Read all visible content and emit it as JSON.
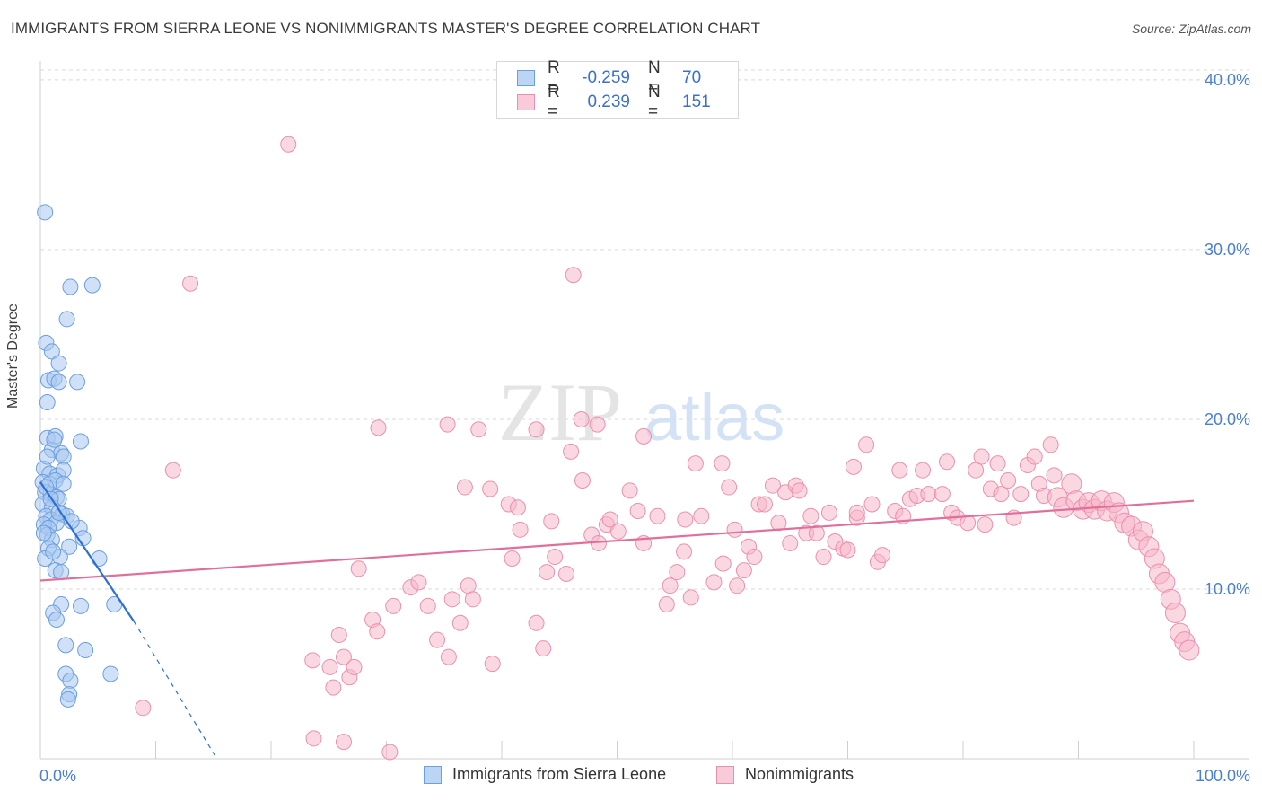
{
  "title": "IMMIGRANTS FROM SIERRA LEONE VS NONIMMIGRANTS MASTER'S DEGREE CORRELATION CHART",
  "source": "Source: ZipAtlas.com",
  "watermark": {
    "zip": "ZIP",
    "atlas": "atlas"
  },
  "colors": {
    "blue_fill": "#a9c8f0",
    "blue_stroke": "#6a9fe0",
    "blue_line": "#2d6fd6",
    "pink_fill": "#f6b8cb",
    "pink_stroke": "#ec8fae",
    "pink_line": "#e0709a",
    "grid": "#d9d9d9",
    "tick_text": "#4a7fd4"
  },
  "legend": {
    "rows": [
      {
        "r_label": "R =",
        "r_value": "-0.259",
        "n_label": "N =",
        "n_value": "70"
      },
      {
        "r_label": "R =",
        "r_value": "0.239",
        "n_label": "N =",
        "n_value": "151"
      }
    ],
    "bottom": [
      "Immigrants from Sierra Leone",
      "Nonimmigrants"
    ]
  },
  "chart_data": {
    "type": "scatter",
    "title": "IMMIGRANTS FROM SIERRA LEONE VS NONIMMIGRANTS MASTER'S DEGREE CORRELATION CHART",
    "xlabel": "",
    "ylabel": "Master's Degree",
    "xlim": [
      0,
      100
    ],
    "ylim": [
      0,
      41
    ],
    "x_tick_labels": [
      "0.0%",
      "100.0%"
    ],
    "y_ticks": [
      10,
      20,
      30,
      40
    ],
    "y_tick_labels": [
      "10.0%",
      "20.0%",
      "30.0%",
      "40.0%"
    ],
    "series": [
      {
        "name": "Immigrants from Sierra Leone",
        "r": -0.259,
        "n": 70,
        "trend": {
          "x0": 0,
          "y0": 16.3,
          "x1": 8.1,
          "y1": 8.1,
          "dash_to_x": 15.3,
          "dash_to_y": 0
        },
        "points": [
          [
            0.4,
            32.2
          ],
          [
            2.6,
            27.8
          ],
          [
            4.5,
            27.9
          ],
          [
            2.3,
            25.9
          ],
          [
            0.5,
            24.5
          ],
          [
            1.0,
            24.0
          ],
          [
            1.6,
            23.3
          ],
          [
            0.7,
            22.3
          ],
          [
            1.2,
            22.4
          ],
          [
            1.6,
            22.2
          ],
          [
            3.2,
            22.2
          ],
          [
            0.6,
            21.0
          ],
          [
            0.6,
            18.9
          ],
          [
            1.3,
            19.0
          ],
          [
            3.5,
            18.7
          ],
          [
            1.0,
            18.2
          ],
          [
            1.8,
            18.0
          ],
          [
            2.0,
            17.8
          ],
          [
            0.3,
            17.1
          ],
          [
            0.8,
            16.8
          ],
          [
            1.5,
            16.7
          ],
          [
            2.0,
            17.0
          ],
          [
            0.2,
            16.3
          ],
          [
            0.8,
            16.2
          ],
          [
            1.3,
            16.4
          ],
          [
            2.0,
            16.2
          ],
          [
            0.4,
            15.7
          ],
          [
            0.9,
            15.6
          ],
          [
            1.4,
            15.4
          ],
          [
            1.6,
            15.3
          ],
          [
            0.2,
            15.0
          ],
          [
            1.0,
            14.8
          ],
          [
            1.9,
            14.4
          ],
          [
            2.3,
            14.3
          ],
          [
            0.5,
            14.3
          ],
          [
            0.9,
            14.1
          ],
          [
            1.4,
            13.9
          ],
          [
            0.3,
            13.8
          ],
          [
            0.7,
            13.6
          ],
          [
            3.4,
            13.6
          ],
          [
            0.6,
            13.2
          ],
          [
            1.0,
            12.9
          ],
          [
            3.7,
            13.0
          ],
          [
            0.7,
            12.4
          ],
          [
            2.5,
            12.5
          ],
          [
            0.4,
            11.8
          ],
          [
            1.7,
            11.9
          ],
          [
            5.1,
            11.8
          ],
          [
            1.3,
            11.1
          ],
          [
            1.8,
            11.0
          ],
          [
            6.4,
            9.1
          ],
          [
            1.8,
            9.1
          ],
          [
            3.5,
            9.0
          ],
          [
            1.1,
            8.6
          ],
          [
            1.4,
            8.2
          ],
          [
            2.2,
            6.7
          ],
          [
            3.9,
            6.4
          ],
          [
            2.2,
            5.0
          ],
          [
            2.6,
            4.6
          ],
          [
            6.1,
            5.0
          ],
          [
            2.5,
            3.8
          ],
          [
            2.4,
            3.5
          ],
          [
            0.5,
            16.0
          ],
          [
            0.9,
            15.3
          ],
          [
            1.6,
            14.5
          ],
          [
            0.3,
            13.3
          ],
          [
            1.1,
            12.2
          ],
          [
            2.7,
            14.0
          ],
          [
            0.6,
            17.8
          ],
          [
            1.2,
            18.8
          ]
        ]
      },
      {
        "name": "Nonimmigrants",
        "r": 0.239,
        "n": 151,
        "trend": {
          "x0": 0,
          "y0": 10.5,
          "x1": 100,
          "y1": 15.2
        },
        "points": [
          [
            21.5,
            36.2
          ],
          [
            46.2,
            28.5
          ],
          [
            11.5,
            17.0
          ],
          [
            8.9,
            3.0
          ],
          [
            23.6,
            5.8
          ],
          [
            23.7,
            1.2
          ],
          [
            30.3,
            0.4
          ],
          [
            25.1,
            5.4
          ],
          [
            25.9,
            7.3
          ],
          [
            25.4,
            4.2
          ],
          [
            26.3,
            6.0
          ],
          [
            26.8,
            4.8
          ],
          [
            27.2,
            5.4
          ],
          [
            27.6,
            11.2
          ],
          [
            28.8,
            8.2
          ],
          [
            29.2,
            7.5
          ],
          [
            30.6,
            9.0
          ],
          [
            32.1,
            10.1
          ],
          [
            32.8,
            10.4
          ],
          [
            33.6,
            9.0
          ],
          [
            34.4,
            7.0
          ],
          [
            35.4,
            6.0
          ],
          [
            35.7,
            9.4
          ],
          [
            36.4,
            8.0
          ],
          [
            37.1,
            10.2
          ],
          [
            37.5,
            9.4
          ],
          [
            39.2,
            5.6
          ],
          [
            39.0,
            15.9
          ],
          [
            40.6,
            15.0
          ],
          [
            40.9,
            11.8
          ],
          [
            41.4,
            14.8
          ],
          [
            41.6,
            13.5
          ],
          [
            43.0,
            8.0
          ],
          [
            43.6,
            6.5
          ],
          [
            43.9,
            11.0
          ],
          [
            44.3,
            14.0
          ],
          [
            44.6,
            11.9
          ],
          [
            45.6,
            10.9
          ],
          [
            46.0,
            18.1
          ],
          [
            47.0,
            16.4
          ],
          [
            47.8,
            13.2
          ],
          [
            48.4,
            12.7
          ],
          [
            49.1,
            13.8
          ],
          [
            49.4,
            14.1
          ],
          [
            50.1,
            13.4
          ],
          [
            51.1,
            15.8
          ],
          [
            51.8,
            14.6
          ],
          [
            52.3,
            12.7
          ],
          [
            53.5,
            14.3
          ],
          [
            54.3,
            9.1
          ],
          [
            54.6,
            10.2
          ],
          [
            55.2,
            11.0
          ],
          [
            55.8,
            12.2
          ],
          [
            55.9,
            14.1
          ],
          [
            56.8,
            17.4
          ],
          [
            56.4,
            9.5
          ],
          [
            57.3,
            14.3
          ],
          [
            58.4,
            10.4
          ],
          [
            59.1,
            17.4
          ],
          [
            59.2,
            11.5
          ],
          [
            59.7,
            16.0
          ],
          [
            60.2,
            13.5
          ],
          [
            60.4,
            10.2
          ],
          [
            61.0,
            11.1
          ],
          [
            61.4,
            12.5
          ],
          [
            61.9,
            11.9
          ],
          [
            62.3,
            15.0
          ],
          [
            62.8,
            15.0
          ],
          [
            63.5,
            16.1
          ],
          [
            64.0,
            13.9
          ],
          [
            64.6,
            15.7
          ],
          [
            65.0,
            12.7
          ],
          [
            65.5,
            16.1
          ],
          [
            65.8,
            15.8
          ],
          [
            66.4,
            13.3
          ],
          [
            66.8,
            14.3
          ],
          [
            67.3,
            13.3
          ],
          [
            67.9,
            11.9
          ],
          [
            68.4,
            14.5
          ],
          [
            68.9,
            12.8
          ],
          [
            69.6,
            12.4
          ],
          [
            70.0,
            12.3
          ],
          [
            70.5,
            17.2
          ],
          [
            70.8,
            14.2
          ],
          [
            71.6,
            18.5
          ],
          [
            72.1,
            15.0
          ],
          [
            72.6,
            11.6
          ],
          [
            73.0,
            12.0
          ],
          [
            74.1,
            14.6
          ],
          [
            74.5,
            17.0
          ],
          [
            74.8,
            14.3
          ],
          [
            75.4,
            15.3
          ],
          [
            76.0,
            15.5
          ],
          [
            76.5,
            17.0
          ],
          [
            77.0,
            15.6
          ],
          [
            78.2,
            15.6
          ],
          [
            78.6,
            17.5
          ],
          [
            79.0,
            14.5
          ],
          [
            79.5,
            14.2
          ],
          [
            80.4,
            13.9
          ],
          [
            81.1,
            17.0
          ],
          [
            81.6,
            17.8
          ],
          [
            81.9,
            13.8
          ],
          [
            82.4,
            15.9
          ],
          [
            83.0,
            17.4
          ],
          [
            83.3,
            15.6
          ],
          [
            83.9,
            16.4
          ],
          [
            84.4,
            14.2
          ],
          [
            85.0,
            15.6
          ],
          [
            85.6,
            17.3
          ],
          [
            86.2,
            17.8
          ],
          [
            86.6,
            16.2
          ],
          [
            87.0,
            15.5
          ],
          [
            87.6,
            18.5
          ],
          [
            87.9,
            16.7
          ],
          [
            88.2,
            15.4
          ],
          [
            88.7,
            14.8
          ],
          [
            89.4,
            16.2
          ],
          [
            89.8,
            15.2
          ],
          [
            90.4,
            14.7
          ],
          [
            90.9,
            15.1
          ],
          [
            91.4,
            14.7
          ],
          [
            92.0,
            15.2
          ],
          [
            92.5,
            14.6
          ],
          [
            93.1,
            15.1
          ],
          [
            93.5,
            14.5
          ],
          [
            94.0,
            13.9
          ],
          [
            94.6,
            13.7
          ],
          [
            95.2,
            12.9
          ],
          [
            95.6,
            13.4
          ],
          [
            96.1,
            12.5
          ],
          [
            96.6,
            11.8
          ],
          [
            97.0,
            10.9
          ],
          [
            97.5,
            10.4
          ],
          [
            98.0,
            9.4
          ],
          [
            98.4,
            8.6
          ],
          [
            98.8,
            7.4
          ],
          [
            99.2,
            6.9
          ],
          [
            99.6,
            6.4
          ],
          [
            13.0,
            28.0
          ],
          [
            29.3,
            19.5
          ],
          [
            35.3,
            19.7
          ],
          [
            38.0,
            19.4
          ],
          [
            43.0,
            19.4
          ],
          [
            48.3,
            19.7
          ],
          [
            52.3,
            19.0
          ],
          [
            46.9,
            20.0
          ],
          [
            26.3,
            1.0
          ],
          [
            36.8,
            16.0
          ],
          [
            70.8,
            14.5
          ]
        ]
      }
    ]
  }
}
